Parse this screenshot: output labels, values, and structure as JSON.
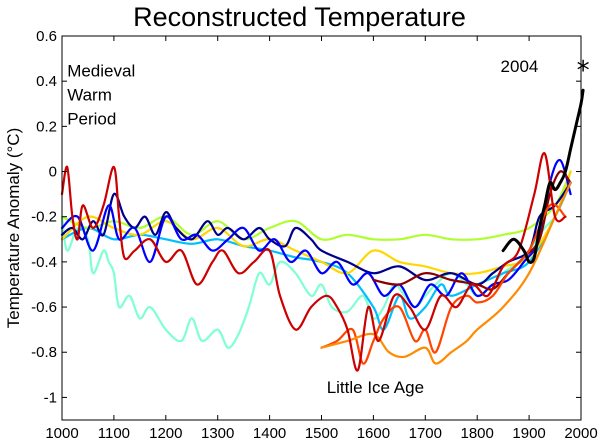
{
  "chart_data": {
    "type": "line",
    "title": "Reconstructed Temperature",
    "xlabel": "",
    "ylabel": "Temperature Anomaly (°C)",
    "xlim": [
      1000,
      2000
    ],
    "ylim": [
      -1.1,
      0.6
    ],
    "x_ticks": [
      1000,
      1100,
      1200,
      1300,
      1400,
      1500,
      1600,
      1700,
      1800,
      1900,
      2000
    ],
    "y_ticks": [
      0.6,
      0.4,
      0.2,
      0,
      -0.2,
      -0.4,
      -0.6,
      -0.8,
      -1
    ],
    "y_tick_labels": [
      "0.6",
      "0.4",
      "0.2",
      "0",
      "-0.2",
      "-0.4",
      "-0.6",
      "-0.8",
      "-1"
    ],
    "grid": false,
    "annotations": [
      {
        "lines": [
          "Medieval",
          "Warm",
          "Period"
        ],
        "x": 1010,
        "y": 0.42
      },
      {
        "lines": [
          "Little Ice Age"
        ],
        "x": 1510,
        "y": -0.98
      },
      {
        "lines": [
          "2004"
        ],
        "x": 1845,
        "y": 0.44
      }
    ],
    "marker": {
      "x": 2004,
      "y": 0.45,
      "symbol": "*"
    },
    "series": [
      {
        "color": "#7fffd4",
        "x": [
          1000,
          1010,
          1030,
          1050,
          1060,
          1080,
          1090,
          1100,
          1110,
          1130,
          1150,
          1170,
          1200,
          1230,
          1250,
          1270,
          1300,
          1320,
          1340,
          1360,
          1380,
          1400,
          1420,
          1450,
          1480,
          1500,
          1520,
          1550,
          1580,
          1600,
          1620,
          1640,
          1660,
          1680,
          1700,
          1720,
          1750,
          1780,
          1800,
          1830,
          1850,
          1880,
          1900,
          1930,
          1950,
          1970,
          1980
        ],
        "y": [
          -0.2,
          -0.35,
          -0.25,
          -0.3,
          -0.45,
          -0.35,
          -0.4,
          -0.45,
          -0.6,
          -0.55,
          -0.65,
          -0.6,
          -0.7,
          -0.75,
          -0.65,
          -0.75,
          -0.7,
          -0.78,
          -0.72,
          -0.6,
          -0.45,
          -0.5,
          -0.4,
          -0.45,
          -0.55,
          -0.5,
          -0.6,
          -0.62,
          -0.55,
          -0.65,
          -0.6,
          -0.5,
          -0.55,
          -0.6,
          -0.55,
          -0.5,
          -0.45,
          -0.5,
          -0.55,
          -0.5,
          -0.45,
          -0.4,
          -0.35,
          -0.25,
          -0.2,
          -0.1,
          -0.05
        ]
      },
      {
        "color": "#00bfff",
        "x": [
          1000,
          1050,
          1100,
          1150,
          1200,
          1250,
          1300,
          1350,
          1400,
          1450,
          1500,
          1550,
          1600,
          1620,
          1650,
          1670,
          1700,
          1730,
          1750,
          1800,
          1850,
          1900,
          1950,
          1980
        ],
        "y": [
          -0.3,
          -0.25,
          -0.3,
          -0.28,
          -0.3,
          -0.32,
          -0.3,
          -0.33,
          -0.35,
          -0.38,
          -0.4,
          -0.45,
          -0.6,
          -0.7,
          -0.55,
          -0.65,
          -0.6,
          -0.5,
          -0.55,
          -0.5,
          -0.45,
          -0.4,
          -0.2,
          -0.05
        ]
      },
      {
        "color": "#adff2f",
        "x": [
          1000,
          1050,
          1100,
          1150,
          1200,
          1250,
          1300,
          1350,
          1400,
          1450,
          1500,
          1550,
          1600,
          1650,
          1700,
          1750,
          1800,
          1850,
          1900,
          1950,
          1980
        ],
        "y": [
          -0.2,
          -0.25,
          -0.22,
          -0.25,
          -0.2,
          -0.28,
          -0.22,
          -0.3,
          -0.25,
          -0.22,
          -0.3,
          -0.28,
          -0.3,
          -0.3,
          -0.28,
          -0.3,
          -0.3,
          -0.28,
          -0.25,
          -0.15,
          0
        ]
      },
      {
        "color": "#ffd700",
        "x": [
          1000,
          1050,
          1100,
          1150,
          1200,
          1250,
          1300,
          1350,
          1400,
          1450,
          1500,
          1550,
          1600,
          1650,
          1700,
          1750,
          1800,
          1850,
          1900,
          1950,
          1980
        ],
        "y": [
          -0.3,
          -0.2,
          -0.25,
          -0.28,
          -0.22,
          -0.3,
          -0.25,
          -0.33,
          -0.3,
          -0.35,
          -0.4,
          -0.45,
          -0.35,
          -0.4,
          -0.42,
          -0.45,
          -0.45,
          -0.42,
          -0.38,
          -0.2,
          0
        ]
      },
      {
        "color": "#00008b",
        "x": [
          1000,
          1020,
          1040,
          1060,
          1080,
          1100,
          1120,
          1140,
          1160,
          1180,
          1200,
          1220,
          1250,
          1280,
          1300,
          1320,
          1350,
          1380,
          1400,
          1430,
          1450,
          1480,
          1500,
          1550,
          1600,
          1650,
          1700,
          1750,
          1800,
          1830,
          1860,
          1900,
          1920,
          1950,
          1980
        ],
        "y": [
          -0.28,
          -0.25,
          -0.3,
          -0.22,
          -0.28,
          -0.1,
          -0.2,
          -0.25,
          -0.2,
          -0.28,
          -0.18,
          -0.25,
          -0.3,
          -0.22,
          -0.28,
          -0.25,
          -0.3,
          -0.25,
          -0.3,
          -0.33,
          -0.25,
          -0.3,
          -0.35,
          -0.4,
          -0.45,
          -0.42,
          -0.48,
          -0.45,
          -0.5,
          -0.45,
          -0.4,
          -0.35,
          -0.2,
          -0.15,
          -0.05
        ]
      },
      {
        "color": "#0000ff",
        "x": [
          1000,
          1030,
          1060,
          1090,
          1110,
          1140,
          1170,
          1200,
          1230,
          1260,
          1290,
          1320,
          1350,
          1380,
          1410,
          1440,
          1470,
          1500,
          1530,
          1560,
          1590,
          1620,
          1650,
          1680,
          1710,
          1740,
          1770,
          1800,
          1830,
          1860,
          1890,
          1920,
          1940,
          1960,
          1980
        ],
        "y": [
          -0.25,
          -0.2,
          -0.35,
          -0.15,
          -0.3,
          -0.25,
          -0.4,
          -0.2,
          -0.3,
          -0.28,
          -0.35,
          -0.3,
          -0.25,
          -0.35,
          -0.3,
          -0.4,
          -0.35,
          -0.45,
          -0.4,
          -0.5,
          -0.45,
          -0.55,
          -0.5,
          -0.6,
          -0.5,
          -0.55,
          -0.45,
          -0.55,
          -0.5,
          -0.48,
          -0.4,
          -0.3,
          -0.05,
          0.05,
          -0.1
        ]
      },
      {
        "color": "#8b0000",
        "x": [
          1600,
          1650,
          1700,
          1750,
          1800,
          1830,
          1860,
          1890,
          1920,
          1940,
          1960,
          1980
        ],
        "y": [
          -0.48,
          -0.5,
          -0.45,
          -0.48,
          -0.5,
          -0.52,
          -0.45,
          -0.38,
          -0.3,
          -0.1,
          0,
          -0.05
        ]
      },
      {
        "color": "#ff4500",
        "x": [
          1500,
          1530,
          1560,
          1580,
          1600,
          1620,
          1650,
          1680,
          1700,
          1720,
          1750,
          1780,
          1800,
          1830,
          1860,
          1900,
          1940,
          1970
        ],
        "y": [
          -0.78,
          -0.75,
          -0.7,
          -0.85,
          -0.75,
          -0.65,
          -0.6,
          -0.75,
          -0.7,
          -0.8,
          -0.6,
          -0.55,
          -0.58,
          -0.55,
          -0.45,
          -0.35,
          -0.15,
          -0.2
        ]
      },
      {
        "color": "#ff8c00",
        "x": [
          1500,
          1550,
          1600,
          1630,
          1660,
          1700,
          1720,
          1750,
          1780,
          1800,
          1850,
          1900,
          1950,
          1980
        ],
        "y": [
          -0.78,
          -0.75,
          -0.72,
          -0.8,
          -0.82,
          -0.78,
          -0.85,
          -0.8,
          -0.75,
          -0.7,
          -0.6,
          -0.45,
          -0.2,
          -0.05
        ]
      },
      {
        "color": "#cc0000",
        "x": [
          1000,
          1010,
          1020,
          1030,
          1040,
          1060,
          1080,
          1100,
          1110,
          1120,
          1140,
          1170,
          1200,
          1230,
          1260,
          1290,
          1310,
          1340,
          1370,
          1400,
          1420,
          1450,
          1480,
          1510,
          1530,
          1550,
          1570,
          1590,
          1610,
          1640,
          1670,
          1700,
          1730,
          1760,
          1790,
          1820,
          1850,
          1880,
          1910,
          1930,
          1950,
          1970
        ],
        "y": [
          -0.1,
          0.02,
          -0.2,
          -0.3,
          -0.15,
          -0.25,
          -0.15,
          0.02,
          -0.2,
          -0.38,
          -0.35,
          -0.3,
          -0.4,
          -0.35,
          -0.5,
          -0.4,
          -0.35,
          -0.45,
          -0.4,
          -0.35,
          -0.55,
          -0.7,
          -0.6,
          -0.55,
          -0.6,
          -0.7,
          -0.88,
          -0.6,
          -0.75,
          -0.55,
          -0.6,
          -0.7,
          -0.55,
          -0.6,
          -0.5,
          -0.55,
          -0.42,
          -0.35,
          -0.1,
          0.08,
          -0.2,
          -0.2
        ]
      },
      {
        "color": "#000000",
        "x": [
          1850,
          1870,
          1890,
          1900,
          1910,
          1920,
          1930,
          1940,
          1950,
          1960,
          1970,
          1980,
          1990,
          2000,
          2004
        ],
        "y": [
          -0.35,
          -0.3,
          -0.35,
          -0.4,
          -0.38,
          -0.25,
          -0.15,
          -0.05,
          -0.08,
          -0.05,
          0,
          0.1,
          0.2,
          0.3,
          0.36
        ]
      }
    ]
  }
}
